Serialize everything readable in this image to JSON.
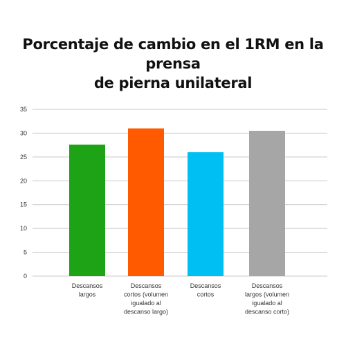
{
  "chart_data": {
    "type": "bar",
    "title_lines": [
      "Porcentaje de cambio en el 1RM en la prensa",
      "de pierna unilateral"
    ],
    "categories": [
      [
        "Descansos",
        "largos"
      ],
      [
        "Descansos",
        "cortos (volumen",
        "igualado al",
        "descanso largo)"
      ],
      [
        "Descansos",
        "cortos"
      ],
      [
        "Descansos",
        "largos (volumen",
        "igualado al",
        "descanso corto)"
      ]
    ],
    "values": [
      27.6,
      31.0,
      26.0,
      30.5
    ],
    "colors": [
      "#1da315",
      "#ff5a00",
      "#00bff3",
      "#a6a6a6"
    ],
    "ylim": [
      0,
      35
    ],
    "yticks": [
      0,
      5,
      10,
      15,
      20,
      25,
      30,
      35
    ],
    "grid": true,
    "gridColor": "#c8c8c8",
    "xlabel": "",
    "ylabel": ""
  }
}
